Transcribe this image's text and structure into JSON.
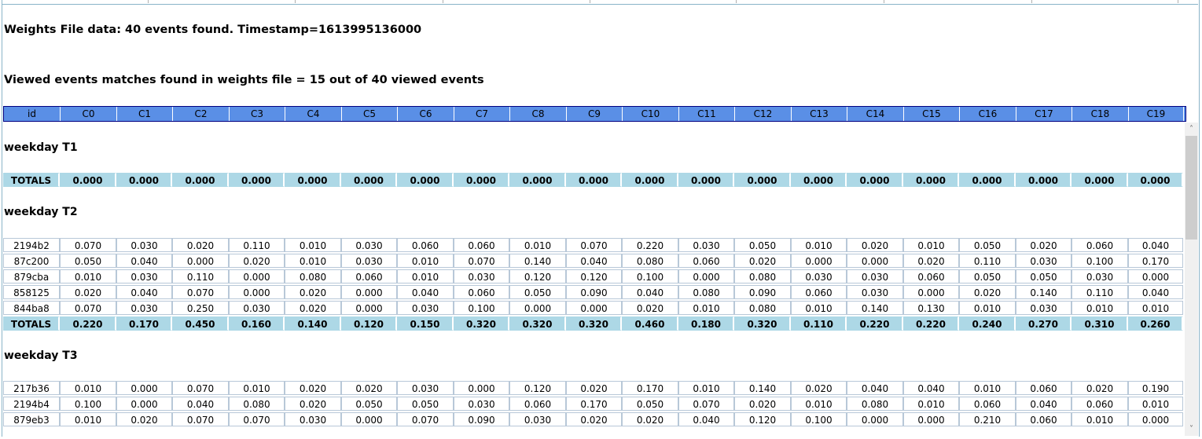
{
  "info": {
    "weights_line": "Weights File data: 40 events found. Timestamp=1613995136000",
    "matches_line": "Viewed events matches found in weights file = 15 out of 40 viewed events"
  },
  "columns": [
    "id",
    "C0",
    "C1",
    "C2",
    "C3",
    "C4",
    "C5",
    "C6",
    "C7",
    "C8",
    "C9",
    "C10",
    "C11",
    "C12",
    "C13",
    "C14",
    "C15",
    "C16",
    "C17",
    "C18",
    "C19"
  ],
  "sections": [
    {
      "title": "weekday T1",
      "rows": [],
      "totals": [
        "TOTALS",
        "0.000",
        "0.000",
        "0.000",
        "0.000",
        "0.000",
        "0.000",
        "0.000",
        "0.000",
        "0.000",
        "0.000",
        "0.000",
        "0.000",
        "0.000",
        "0.000",
        "0.000",
        "0.000",
        "0.000",
        "0.000",
        "0.000",
        "0.000"
      ]
    },
    {
      "title": "weekday T2",
      "rows": [
        [
          "2194b2",
          "0.070",
          "0.030",
          "0.020",
          "0.110",
          "0.010",
          "0.030",
          "0.060",
          "0.060",
          "0.010",
          "0.070",
          "0.220",
          "0.030",
          "0.050",
          "0.010",
          "0.020",
          "0.010",
          "0.050",
          "0.020",
          "0.060",
          "0.040"
        ],
        [
          "87c200",
          "0.050",
          "0.040",
          "0.000",
          "0.020",
          "0.010",
          "0.030",
          "0.010",
          "0.070",
          "0.140",
          "0.040",
          "0.080",
          "0.060",
          "0.020",
          "0.000",
          "0.000",
          "0.020",
          "0.110",
          "0.030",
          "0.100",
          "0.170"
        ],
        [
          "879cba",
          "0.010",
          "0.030",
          "0.110",
          "0.000",
          "0.080",
          "0.060",
          "0.010",
          "0.030",
          "0.120",
          "0.120",
          "0.100",
          "0.000",
          "0.080",
          "0.030",
          "0.030",
          "0.060",
          "0.050",
          "0.050",
          "0.030",
          "0.000"
        ],
        [
          "858125",
          "0.020",
          "0.040",
          "0.070",
          "0.000",
          "0.020",
          "0.000",
          "0.040",
          "0.060",
          "0.050",
          "0.090",
          "0.040",
          "0.080",
          "0.090",
          "0.060",
          "0.030",
          "0.000",
          "0.020",
          "0.140",
          "0.110",
          "0.040"
        ],
        [
          "844ba8",
          "0.070",
          "0.030",
          "0.250",
          "0.030",
          "0.020",
          "0.000",
          "0.030",
          "0.100",
          "0.000",
          "0.000",
          "0.020",
          "0.010",
          "0.080",
          "0.010",
          "0.140",
          "0.130",
          "0.010",
          "0.030",
          "0.010",
          "0.010"
        ]
      ],
      "totals": [
        "TOTALS",
        "0.220",
        "0.170",
        "0.450",
        "0.160",
        "0.140",
        "0.120",
        "0.150",
        "0.320",
        "0.320",
        "0.320",
        "0.460",
        "0.180",
        "0.320",
        "0.110",
        "0.220",
        "0.220",
        "0.240",
        "0.270",
        "0.310",
        "0.260"
      ]
    },
    {
      "title": "weekday T3",
      "rows": [
        [
          "217b36",
          "0.010",
          "0.000",
          "0.070",
          "0.010",
          "0.020",
          "0.020",
          "0.030",
          "0.000",
          "0.120",
          "0.020",
          "0.170",
          "0.010",
          "0.140",
          "0.020",
          "0.040",
          "0.040",
          "0.010",
          "0.060",
          "0.020",
          "0.190"
        ],
        [
          "2194b4",
          "0.100",
          "0.000",
          "0.040",
          "0.080",
          "0.020",
          "0.050",
          "0.050",
          "0.030",
          "0.060",
          "0.170",
          "0.050",
          "0.070",
          "0.020",
          "0.010",
          "0.080",
          "0.010",
          "0.060",
          "0.040",
          "0.060",
          "0.010"
        ],
        [
          "879eb3",
          "0.010",
          "0.020",
          "0.070",
          "0.070",
          "0.030",
          "0.000",
          "0.070",
          "0.090",
          "0.030",
          "0.020",
          "0.020",
          "0.040",
          "0.120",
          "0.100",
          "0.000",
          "0.000",
          "0.210",
          "0.060",
          "0.010",
          "0.000"
        ]
      ],
      "totals": null
    }
  ],
  "scrollbar": {
    "up_icon": "chevron-up-icon",
    "down_icon": "chevron-down-icon"
  },
  "colors": {
    "header_bg": "#5a8fe6",
    "header_border": "#000080",
    "totals_bg": "#add8e6"
  }
}
